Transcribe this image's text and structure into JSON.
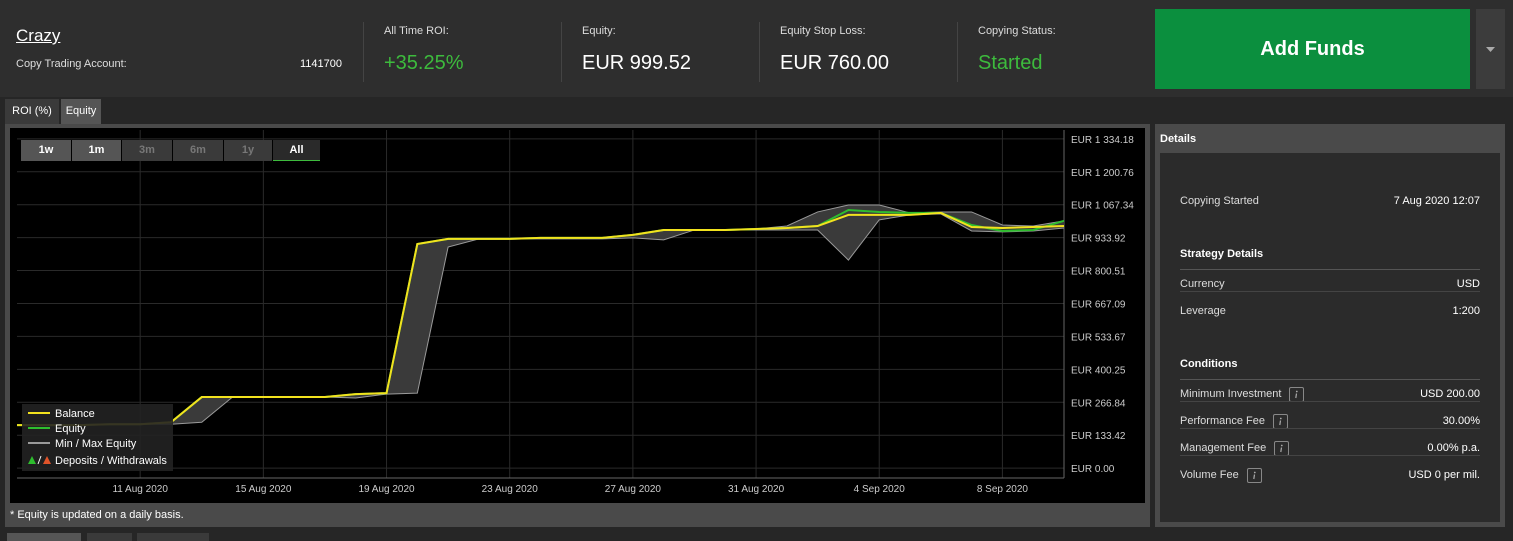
{
  "header": {
    "account_name": "Crazy",
    "account_label": "Copy Trading Account:",
    "account_number": "1141700"
  },
  "stats": [
    {
      "label": "All Time ROI:",
      "value": "+35.25%",
      "green": true
    },
    {
      "label": "Equity:",
      "value": "EUR 999.52",
      "green": false
    },
    {
      "label": "Equity Stop Loss:",
      "value": "EUR 760.00",
      "green": false
    },
    {
      "label": "Copying Status:",
      "value": "Started",
      "green": true
    }
  ],
  "add_funds": "Add Funds",
  "tabs": [
    "ROI (%)",
    "Equity"
  ],
  "range_buttons": [
    "1w",
    "1m",
    "3m",
    "6m",
    "1y",
    "All"
  ],
  "chart_data": {
    "type": "line",
    "x": [
      "2020-08-07",
      "2020-08-08",
      "2020-08-09",
      "2020-08-10",
      "2020-08-11",
      "2020-08-12",
      "2020-08-13",
      "2020-08-14",
      "2020-08-15",
      "2020-08-16",
      "2020-08-17",
      "2020-08-18",
      "2020-08-19",
      "2020-08-20",
      "2020-08-21",
      "2020-08-22",
      "2020-08-23",
      "2020-08-24",
      "2020-08-25",
      "2020-08-26",
      "2020-08-27",
      "2020-08-28",
      "2020-08-29",
      "2020-08-30",
      "2020-08-31",
      "2020-09-01",
      "2020-09-02",
      "2020-09-03",
      "2020-09-04",
      "2020-09-05",
      "2020-09-06",
      "2020-09-07",
      "2020-09-08",
      "2020-09-09",
      "2020-09-10"
    ],
    "series": [
      {
        "name": "Min / Max Equity",
        "color": "#9a9a9a",
        "band": true,
        "values": [
          174,
          174,
          174,
          178,
          178,
          186,
          288,
          288,
          288,
          288,
          288,
          300,
          304,
          908,
          929,
          929,
          929,
          933,
          933,
          933,
          945,
          965,
          965,
          965,
          969,
          981,
          1038,
          1066,
          1066,
          1034,
          1038,
          1038,
          985,
          981,
          1002
        ],
        "low": [
          174,
          174,
          174,
          178,
          178,
          178,
          186,
          288,
          288,
          288,
          288,
          284,
          300,
          304,
          896,
          929,
          929,
          929,
          929,
          929,
          933,
          925,
          965,
          965,
          965,
          965,
          965,
          843,
          1006,
          1026,
          1030,
          961,
          957,
          961,
          973
        ]
      },
      {
        "name": "Equity",
        "color": "#2ebd2e",
        "band": false,
        "values": [
          174,
          174,
          174,
          178,
          178,
          186,
          288,
          288,
          288,
          288,
          288,
          300,
          304,
          908,
          929,
          929,
          929,
          933,
          933,
          933,
          945,
          965,
          965,
          965,
          969,
          973,
          981,
          1046,
          1038,
          1034,
          1034,
          985,
          961,
          965,
          1002
        ]
      },
      {
        "name": "Balance",
        "color": "#f2e21e",
        "band": false,
        "values": [
          174,
          174,
          174,
          178,
          178,
          186,
          288,
          288,
          288,
          288,
          288,
          300,
          304,
          908,
          929,
          929,
          929,
          933,
          933,
          933,
          945,
          965,
          965,
          965,
          969,
          973,
          981,
          1026,
          1026,
          1026,
          1034,
          977,
          973,
          977,
          981
        ]
      }
    ],
    "deposits_legend": "Deposits / Withdrawals",
    "xlim": [
      "2020-08-07",
      "2020-09-10"
    ],
    "xticks": [
      {
        "value": "2020-08-11",
        "label": "11 Aug 2020"
      },
      {
        "value": "2020-08-15",
        "label": "15 Aug 2020"
      },
      {
        "value": "2020-08-19",
        "label": "19 Aug 2020"
      },
      {
        "value": "2020-08-23",
        "label": "23 Aug 2020"
      },
      {
        "value": "2020-08-27",
        "label": "27 Aug 2020"
      },
      {
        "value": "2020-08-31",
        "label": "31 Aug 2020"
      },
      {
        "value": "2020-09-04",
        "label": "4 Sep 2020"
      },
      {
        "value": "2020-09-08",
        "label": "8 Sep 2020"
      }
    ],
    "ylim": [
      -40,
      1370
    ],
    "yticks": [
      {
        "value": 0,
        "label": "EUR 0.00"
      },
      {
        "value": 133.42,
        "label": "EUR 133.42"
      },
      {
        "value": 266.84,
        "label": "EUR 266.84"
      },
      {
        "value": 400.25,
        "label": "EUR 400.25"
      },
      {
        "value": 533.67,
        "label": "EUR 533.67"
      },
      {
        "value": 667.09,
        "label": "EUR 667.09"
      },
      {
        "value": 800.51,
        "label": "EUR 800.51"
      },
      {
        "value": 933.92,
        "label": "EUR 933.92"
      },
      {
        "value": 1067.34,
        "label": "EUR 1 067.34"
      },
      {
        "value": 1200.76,
        "label": "EUR 1 200.76"
      },
      {
        "value": 1334.18,
        "label": "EUR 1 334.18"
      }
    ],
    "grid": true,
    "legend": "bottom-left"
  },
  "footnote": "* Equity is updated on a daily basis.",
  "details": {
    "title": "Details",
    "copying_started": {
      "label": "Copying Started",
      "value": "7 Aug 2020 12:07"
    },
    "sections": [
      {
        "title": "Strategy Details",
        "rows": [
          {
            "label": "Currency",
            "value": "USD",
            "info": false
          },
          {
            "label": "Leverage",
            "value": "1:200",
            "info": false
          }
        ]
      },
      {
        "title": "Conditions",
        "rows": [
          {
            "label": "Minimum Investment",
            "value": "USD 200.00",
            "info": true
          },
          {
            "label": "Performance Fee",
            "value": "30.00%",
            "info": true
          },
          {
            "label": "Management Fee",
            "value": "0.00% p.a.",
            "info": true
          },
          {
            "label": "Volume Fee",
            "value": "USD 0 per mil.",
            "info": true
          }
        ]
      }
    ]
  }
}
